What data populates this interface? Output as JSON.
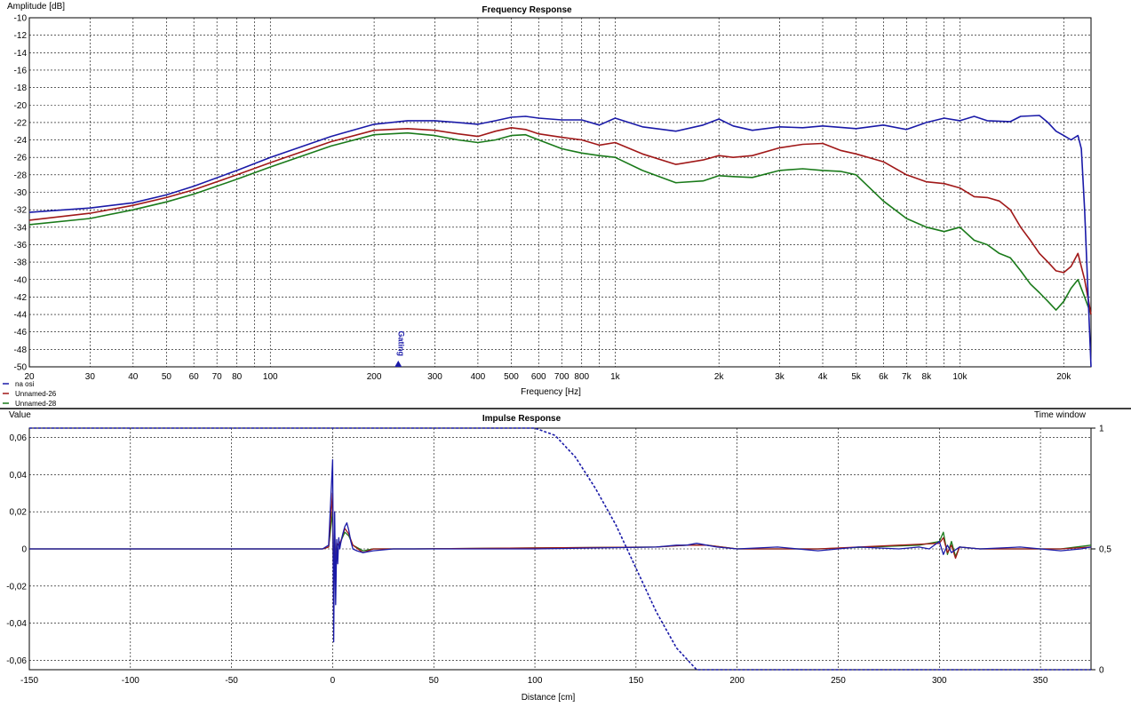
{
  "chart_data": [
    {
      "type": "line",
      "title": "Frequency Response",
      "ylabel": "Amplitude [dB]",
      "xlabel": "Frequency [Hz]",
      "xscale": "log",
      "xlim": [
        20,
        24000
      ],
      "ylim": [
        -50,
        -10
      ],
      "grid": true,
      "legend_position": "bottom-left",
      "y_ticks": [
        -10,
        -12,
        -14,
        -16,
        -18,
        -20,
        -22,
        -24,
        -26,
        -28,
        -30,
        -32,
        -34,
        -36,
        -38,
        -40,
        -42,
        -44,
        -46,
        -48,
        -50
      ],
      "x_ticks": [
        {
          "value": 20,
          "label": "20"
        },
        {
          "value": 30,
          "label": "30"
        },
        {
          "value": 40,
          "label": "40"
        },
        {
          "value": 50,
          "label": "50"
        },
        {
          "value": 60,
          "label": "60"
        },
        {
          "value": 70,
          "label": "70"
        },
        {
          "value": 80,
          "label": "80"
        },
        {
          "value": 100,
          "label": "100"
        },
        {
          "value": 200,
          "label": "200"
        },
        {
          "value": 300,
          "label": "300"
        },
        {
          "value": 400,
          "label": "400"
        },
        {
          "value": 500,
          "label": "500"
        },
        {
          "value": 600,
          "label": "600"
        },
        {
          "value": 700,
          "label": "700"
        },
        {
          "value": 800,
          "label": "800"
        },
        {
          "value": 1000,
          "label": "1k"
        },
        {
          "value": 2000,
          "label": "2k"
        },
        {
          "value": 3000,
          "label": "3k"
        },
        {
          "value": 4000,
          "label": "4k"
        },
        {
          "value": 5000,
          "label": "5k"
        },
        {
          "value": 6000,
          "label": "6k"
        },
        {
          "value": 7000,
          "label": "7k"
        },
        {
          "value": 8000,
          "label": "8k"
        },
        {
          "value": 10000,
          "label": "10k"
        },
        {
          "value": 20000,
          "label": "20k"
        }
      ],
      "x_minor_ticks": [
        90,
        900,
        9000
      ],
      "marker": {
        "label": "Gating",
        "x": 235
      },
      "series": [
        {
          "name": "na osi",
          "color": "#1a1aa8",
          "x": [
            20,
            30,
            40,
            50,
            60,
            80,
            100,
            150,
            200,
            250,
            300,
            350,
            400,
            450,
            500,
            550,
            600,
            700,
            800,
            900,
            1000,
            1200,
            1500,
            1800,
            2000,
            2200,
            2500,
            3000,
            3500,
            4000,
            5000,
            6000,
            7000,
            8000,
            9000,
            10000,
            11000,
            12000,
            14000,
            15000,
            17000,
            18000,
            19000,
            20000,
            21000,
            22000,
            22500,
            23000,
            24000
          ],
          "y": [
            -32.3,
            -31.8,
            -31.2,
            -30.3,
            -29.3,
            -27.5,
            -26.0,
            -23.6,
            -22.2,
            -21.8,
            -21.8,
            -22.0,
            -22.2,
            -21.8,
            -21.4,
            -21.3,
            -21.5,
            -21.7,
            -21.7,
            -22.3,
            -21.5,
            -22.5,
            -23.0,
            -22.3,
            -21.6,
            -22.4,
            -22.9,
            -22.5,
            -22.6,
            -22.4,
            -22.7,
            -22.3,
            -22.8,
            -22.0,
            -21.5,
            -21.8,
            -21.3,
            -21.8,
            -21.9,
            -21.3,
            -21.2,
            -22.0,
            -23.0,
            -23.5,
            -24.0,
            -23.5,
            -25.0,
            -32.0,
            -50.0
          ]
        },
        {
          "name": "Unnamed-26",
          "color": "#a01818",
          "x": [
            20,
            30,
            40,
            50,
            60,
            80,
            100,
            150,
            200,
            250,
            300,
            350,
            400,
            450,
            500,
            550,
            600,
            700,
            800,
            900,
            1000,
            1200,
            1500,
            1800,
            2000,
            2200,
            2500,
            3000,
            3500,
            4000,
            4500,
            5000,
            6000,
            7000,
            8000,
            9000,
            10000,
            11000,
            12000,
            13000,
            14000,
            15000,
            16000,
            17000,
            18000,
            19000,
            20000,
            21000,
            22000,
            23000,
            24000
          ],
          "y": [
            -33.2,
            -32.4,
            -31.5,
            -30.6,
            -29.7,
            -28.0,
            -26.6,
            -24.2,
            -22.9,
            -22.7,
            -22.9,
            -23.3,
            -23.6,
            -23.0,
            -22.6,
            -22.8,
            -23.3,
            -23.7,
            -24.0,
            -24.6,
            -24.3,
            -25.6,
            -26.8,
            -26.3,
            -25.8,
            -26.0,
            -25.8,
            -24.9,
            -24.5,
            -24.4,
            -25.2,
            -25.6,
            -26.5,
            -28.0,
            -28.8,
            -29.0,
            -29.5,
            -30.5,
            -30.6,
            -31.0,
            -32.0,
            -34.0,
            -35.5,
            -37.0,
            -38.0,
            -39.0,
            -39.2,
            -38.5,
            -37.0,
            -40.0,
            -44.0
          ]
        },
        {
          "name": "Unnamed-28",
          "color": "#1a7a1a",
          "x": [
            20,
            30,
            40,
            50,
            60,
            80,
            100,
            150,
            200,
            250,
            300,
            350,
            400,
            450,
            500,
            550,
            600,
            700,
            800,
            900,
            1000,
            1200,
            1500,
            1800,
            2000,
            2200,
            2500,
            3000,
            3500,
            4000,
            4500,
            5000,
            6000,
            7000,
            8000,
            9000,
            10000,
            11000,
            12000,
            13000,
            14000,
            15000,
            16000,
            17000,
            18000,
            19000,
            20000,
            21000,
            22000,
            23000,
            24000
          ],
          "y": [
            -33.7,
            -33.0,
            -32.0,
            -31.1,
            -30.2,
            -28.5,
            -27.1,
            -24.7,
            -23.4,
            -23.2,
            -23.5,
            -24.0,
            -24.3,
            -24.0,
            -23.5,
            -23.4,
            -24.0,
            -25.0,
            -25.5,
            -25.8,
            -26.0,
            -27.5,
            -28.9,
            -28.7,
            -28.1,
            -28.2,
            -28.3,
            -27.5,
            -27.3,
            -27.5,
            -27.6,
            -28.0,
            -31.0,
            -33.0,
            -34.0,
            -34.5,
            -34.0,
            -35.5,
            -36.0,
            -37.0,
            -37.5,
            -39.0,
            -40.5,
            -41.5,
            -42.5,
            -43.5,
            -42.5,
            -41.0,
            -40.0,
            -42.0,
            -44.0
          ]
        }
      ]
    },
    {
      "type": "line",
      "title": "Impulse Response",
      "ylabel": "Value",
      "xlabel": "Distance [cm]",
      "xlim": [
        -150,
        375
      ],
      "ylim": [
        -0.065,
        0.065
      ],
      "grid": true,
      "x_ticks": [
        -150,
        -100,
        -50,
        0,
        50,
        100,
        150,
        200,
        250,
        300,
        350
      ],
      "y_ticks": [
        {
          "value": 0.06,
          "label": "0,06"
        },
        {
          "value": 0.04,
          "label": "0,04"
        },
        {
          "value": 0.02,
          "label": "0,02"
        },
        {
          "value": 0,
          "label": "0"
        },
        {
          "value": -0.02,
          "label": "-0,02"
        },
        {
          "value": -0.04,
          "label": "-0,04"
        },
        {
          "value": -0.06,
          "label": "-0,06"
        }
      ],
      "y2label": "Time window",
      "y2lim": [
        0,
        1
      ],
      "y2_ticks": [
        {
          "value": 1,
          "label": "1"
        },
        {
          "value": 0.5,
          "label": "0,5"
        },
        {
          "value": 0,
          "label": "0"
        }
      ],
      "time_window": {
        "color": "#1a1aa8",
        "x": [
          -150,
          0,
          100,
          110,
          120,
          130,
          140,
          150,
          160,
          170,
          180,
          375
        ],
        "y": [
          1,
          1,
          1,
          0.97,
          0.88,
          0.75,
          0.6,
          0.42,
          0.24,
          0.09,
          0.0,
          0.0
        ]
      },
      "series": [
        {
          "name": "na osi",
          "color": "#1a1aa8",
          "x": [
            -150,
            -30,
            -20,
            -5,
            -2,
            0,
            0.5,
            1,
            1.5,
            2,
            2.5,
            3,
            3.5,
            4,
            5,
            6,
            7,
            8,
            9,
            10,
            12,
            15,
            20,
            30,
            40,
            60,
            100,
            160,
            170,
            175,
            180,
            185,
            190,
            200,
            220,
            240,
            260,
            280,
            290,
            295,
            300,
            302,
            304,
            306,
            310,
            320,
            340,
            360,
            370,
            375
          ],
          "y": [
            0,
            0,
            0,
            0,
            0.002,
            0.048,
            -0.05,
            0.02,
            -0.03,
            0.005,
            -0.008,
            0.006,
            0.0,
            0.003,
            0.008,
            0.012,
            0.014,
            0.01,
            0.004,
            0.0,
            -0.001,
            -0.002,
            -0.001,
            0,
            0,
            0,
            0,
            0.001,
            0.002,
            0.002,
            0.003,
            0.002,
            0.001,
            0,
            0.001,
            -0.001,
            0.001,
            0,
            0.001,
            0,
            0.004,
            -0.003,
            0.002,
            -0.002,
            0.001,
            0,
            0.001,
            -0.001,
            0,
            0.001
          ]
        },
        {
          "name": "Unnamed-26",
          "color": "#a01818",
          "x": [
            -150,
            -5,
            -2,
            0,
            0.5,
            1,
            1.5,
            2,
            3,
            4,
            6,
            8,
            10,
            15,
            20,
            40,
            160,
            175,
            185,
            200,
            240,
            300,
            302,
            304,
            306,
            308,
            310,
            320,
            360,
            375
          ],
          "y": [
            0,
            0,
            0.001,
            0.03,
            -0.035,
            0.012,
            -0.02,
            0.003,
            0.002,
            0.004,
            0.011,
            0.008,
            0.002,
            -0.002,
            0,
            0,
            0.001,
            0.002,
            0.002,
            0,
            0,
            0.003,
            0.006,
            -0.002,
            0.002,
            -0.005,
            0.001,
            0,
            0,
            0.001
          ]
        },
        {
          "name": "Unnamed-28",
          "color": "#1a7a1a",
          "x": [
            -150,
            -5,
            -2,
            0,
            0.5,
            1,
            1.5,
            2,
            3,
            4,
            6,
            8,
            10,
            15,
            20,
            40,
            160,
            175,
            185,
            200,
            240,
            290,
            300,
            302,
            304,
            306,
            308,
            310,
            320,
            360,
            375
          ],
          "y": [
            0,
            0,
            0.001,
            0.02,
            -0.025,
            0.01,
            -0.015,
            0.002,
            0.002,
            0.004,
            0.009,
            0.007,
            0.002,
            -0.001,
            0,
            0,
            0.001,
            0.002,
            0.002,
            0,
            0,
            0.002,
            0.004,
            0.009,
            -0.003,
            0.004,
            -0.004,
            0.001,
            0,
            0,
            0.002
          ]
        }
      ]
    }
  ]
}
